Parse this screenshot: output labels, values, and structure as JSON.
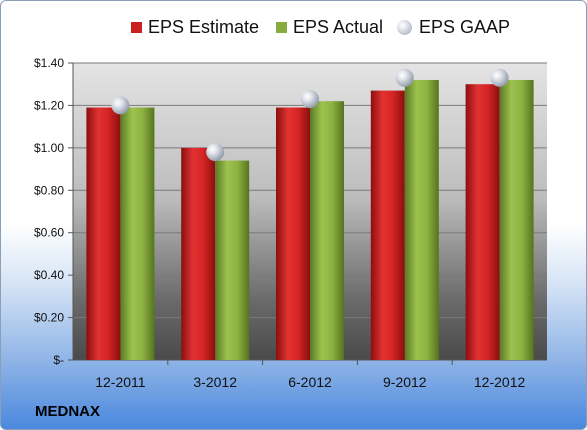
{
  "chart_data": {
    "type": "bar",
    "categories": [
      "12-2011",
      "3-2012",
      "6-2012",
      "9-2012",
      "12-2012"
    ],
    "series": [
      {
        "name": "EPS Estimate",
        "values": [
          1.19,
          1.0,
          1.19,
          1.27,
          1.3
        ],
        "color": "#cc1f1f"
      },
      {
        "name": "EPS Actual",
        "values": [
          1.19,
          0.94,
          1.22,
          1.32,
          1.32
        ],
        "color": "#86ab3e"
      },
      {
        "name": "EPS GAAP",
        "values": [
          1.2,
          0.98,
          1.23,
          1.33,
          1.33
        ],
        "marker": "sphere",
        "color": "#c0c4cc"
      }
    ],
    "ylim": [
      0,
      1.4
    ],
    "yticks": [
      0,
      0.2,
      0.4,
      0.6,
      0.8,
      1.0,
      1.2,
      1.4
    ],
    "ytick_labels": [
      "$-",
      "$0.20",
      "$0.40",
      "$0.60",
      "$0.80",
      "$1.00",
      "$1.20",
      "$1.40"
    ],
    "grid": true,
    "legend_position": "top"
  },
  "company": "MEDNAX"
}
